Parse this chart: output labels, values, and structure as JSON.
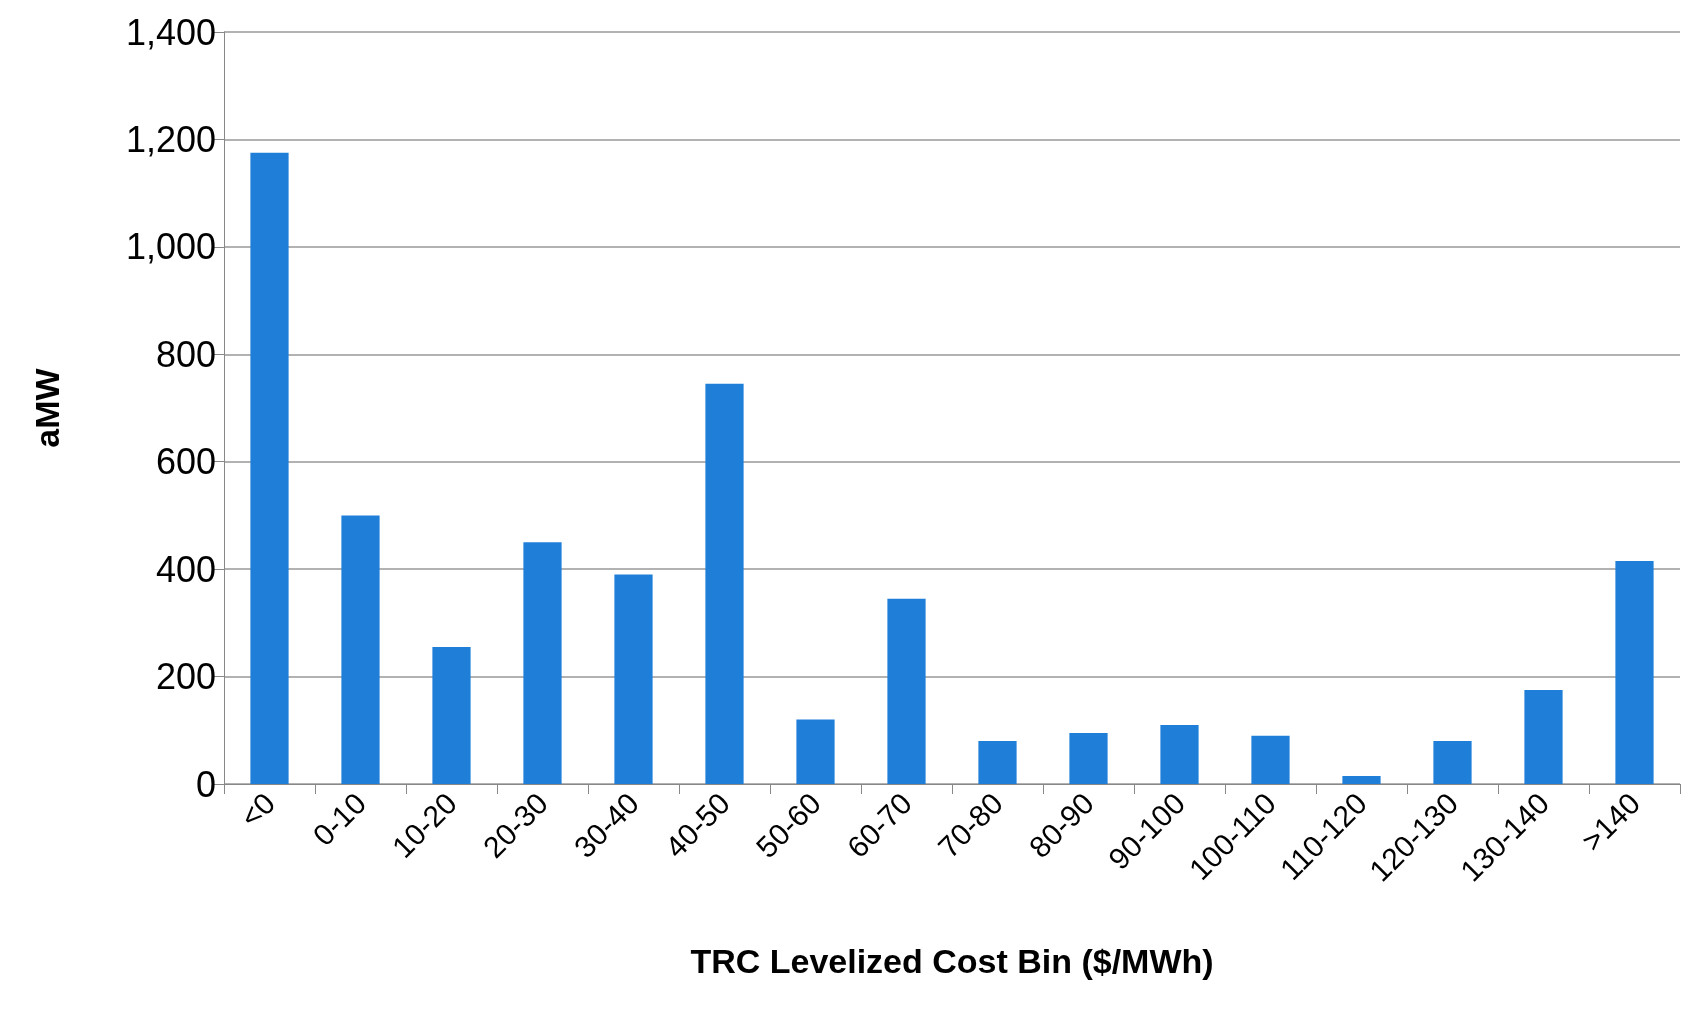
{
  "chart_data": {
    "type": "bar",
    "xlabel": "TRC Levelized Cost Bin ($/MWh)",
    "ylabel": "aMW",
    "categories": [
      "<0",
      "0-10",
      "10-20",
      "20-30",
      "30-40",
      "40-50",
      "50-60",
      "60-70",
      "70-80",
      "80-90",
      "90-100",
      "100-110",
      "110-120",
      "120-130",
      "130-140",
      ">140"
    ],
    "values": [
      1175,
      500,
      255,
      450,
      390,
      745,
      120,
      345,
      80,
      95,
      110,
      90,
      15,
      80,
      175,
      415
    ],
    "color": "#1f7fd8",
    "ylim": [
      0,
      1400
    ],
    "yticks": [
      0,
      200,
      400,
      600,
      800,
      {
        "value": 1000,
        "label": "1,000"
      },
      {
        "value": 1200,
        "label": "1,200"
      },
      {
        "value": 1400,
        "label": "1,400"
      }
    ],
    "grid": "y"
  }
}
